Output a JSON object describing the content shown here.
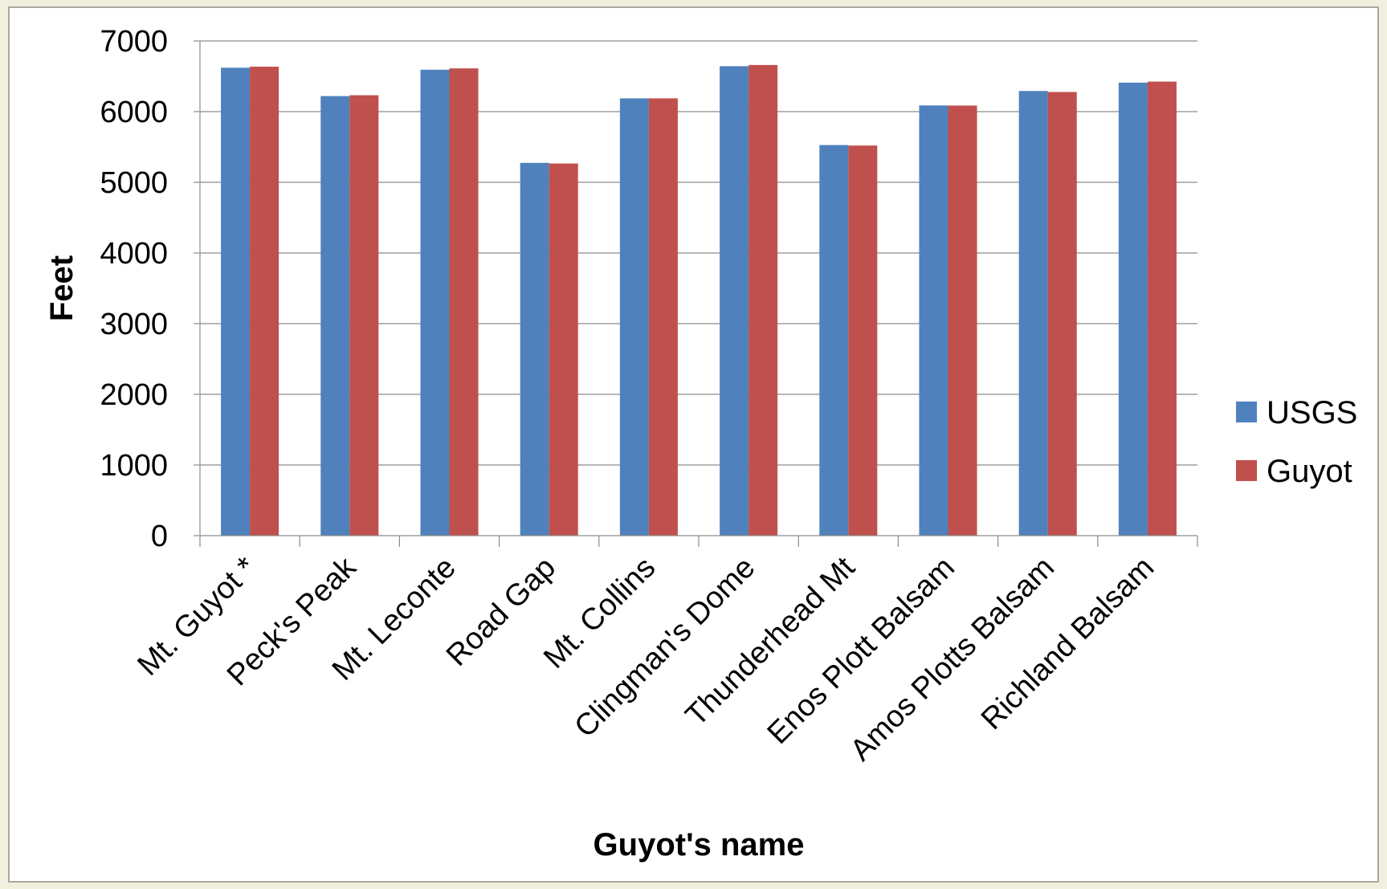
{
  "chart_data": {
    "type": "bar",
    "title": "",
    "xlabel": "Guyot's name",
    "ylabel": "Feet",
    "ylim": [
      0,
      7000
    ],
    "yticks": [
      0,
      1000,
      2000,
      3000,
      4000,
      5000,
      6000,
      7000
    ],
    "grid": true,
    "legend_position": "right",
    "categories": [
      "Mt. Guyot *",
      "Peck's Peak",
      "Mt. Leconte",
      "Road Gap",
      "Mt. Collins",
      "Clingman's Dome",
      "Thunderhead Mt",
      "Enos Plott Balsam",
      "Amos Plotts Balsam",
      "Richland Balsam"
    ],
    "series": [
      {
        "name": "USGS",
        "color": "#4f81bd",
        "values": [
          6621,
          6220,
          6593,
          5275,
          6188,
          6643,
          5527,
          6088,
          6292,
          6410
        ]
      },
      {
        "name": "Guyot",
        "color": "#c0504d",
        "values": [
          6636,
          6232,
          6612,
          5266,
          6188,
          6660,
          5520,
          6086,
          6278,
          6425
        ]
      }
    ]
  }
}
